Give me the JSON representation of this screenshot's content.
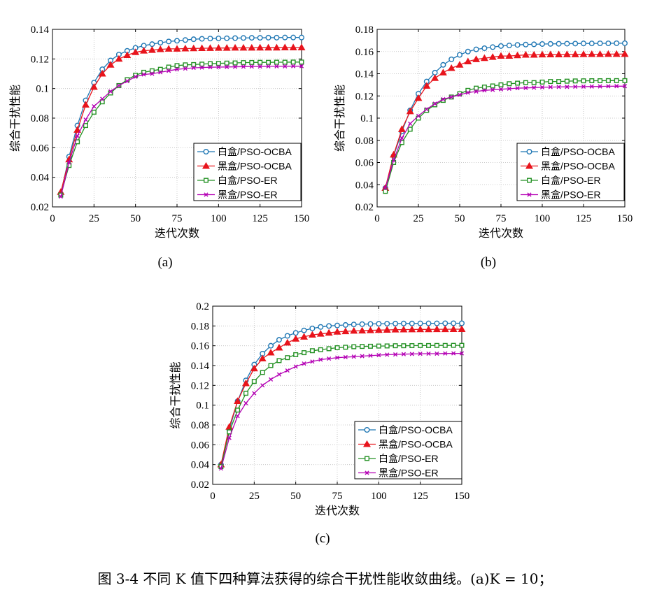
{
  "caption": "图 3-4 不同 K 值下四种算法获得的综合干扰性能收敛曲线。(a)K = 10；",
  "colors": {
    "blue": "#1f77b4",
    "red": "#e8141c",
    "green": "#249124",
    "purple": "#b400b4"
  },
  "chart_data": [
    {
      "type": "line",
      "sublabel": "(a)",
      "xlabel": "迭代次数",
      "ylabel": "综合干扰性能",
      "xlim": [
        0,
        150
      ],
      "ylim": [
        0.02,
        0.14
      ],
      "xticks": [
        0,
        25,
        50,
        75,
        100,
        125,
        150
      ],
      "yticks": [
        0.02,
        0.04,
        0.06,
        0.08,
        0.1,
        0.12,
        0.14
      ],
      "ytick_labels": [
        "0.02",
        "0.04",
        "0.06",
        "0.08",
        "0.1",
        "0.12",
        "0.14"
      ],
      "grid": true,
      "legend_position": "lower-right",
      "x": [
        5,
        10,
        15,
        20,
        25,
        30,
        35,
        40,
        45,
        50,
        55,
        60,
        65,
        70,
        75,
        80,
        85,
        90,
        95,
        100,
        105,
        110,
        115,
        120,
        125,
        130,
        135,
        140,
        145,
        150
      ],
      "series": [
        {
          "name": "白盒/PSO-OCBA",
          "color": "blue",
          "marker": "circle",
          "values": [
            0.029,
            0.054,
            0.075,
            0.092,
            0.104,
            0.113,
            0.119,
            0.123,
            0.1255,
            0.1275,
            0.129,
            0.13,
            0.131,
            0.1318,
            0.1323,
            0.1328,
            0.1333,
            0.1336,
            0.1338,
            0.1339,
            0.134,
            0.1341,
            0.1342,
            0.1343,
            0.1343,
            0.1344,
            0.1344,
            0.1345,
            0.1345,
            0.1345
          ]
        },
        {
          "name": "黑盒/PSO-OCBA",
          "color": "red",
          "marker": "triangle",
          "values": [
            0.03,
            0.052,
            0.072,
            0.089,
            0.101,
            0.11,
            0.116,
            0.12,
            0.1225,
            0.1245,
            0.1255,
            0.126,
            0.1265,
            0.1268,
            0.1268,
            0.127,
            0.1271,
            0.1272,
            0.1273,
            0.1274,
            0.1274,
            0.1275,
            0.1275,
            0.1275,
            0.1276,
            0.1276,
            0.1276,
            0.1277,
            0.1277,
            0.1277
          ]
        },
        {
          "name": "白盒/PSO-ER",
          "color": "green",
          "marker": "square",
          "values": [
            0.028,
            0.048,
            0.064,
            0.075,
            0.084,
            0.091,
            0.097,
            0.102,
            0.106,
            0.109,
            0.111,
            0.112,
            0.113,
            0.1145,
            0.1155,
            0.116,
            0.1162,
            0.1165,
            0.1168,
            0.117,
            0.1172,
            0.1173,
            0.1175,
            0.1176,
            0.1177,
            0.1177,
            0.1178,
            0.1178,
            0.1179,
            0.1179
          ]
        },
        {
          "name": "黑盒/PSO-ER",
          "color": "purple",
          "marker": "cross",
          "values": [
            0.027,
            0.05,
            0.068,
            0.079,
            0.088,
            0.093,
            0.098,
            0.102,
            0.105,
            0.108,
            0.1095,
            0.11,
            0.111,
            0.112,
            0.113,
            0.1135,
            0.114,
            0.1142,
            0.1144,
            0.1145,
            0.1146,
            0.1147,
            0.1148,
            0.1149,
            0.1149,
            0.115,
            0.115,
            0.115,
            0.1151,
            0.1151
          ]
        }
      ]
    },
    {
      "type": "line",
      "sublabel": "(b)",
      "xlabel": "迭代次数",
      "ylabel": "综合干扰性能",
      "xlim": [
        0,
        150
      ],
      "ylim": [
        0.02,
        0.18
      ],
      "xticks": [
        0,
        25,
        50,
        75,
        100,
        125,
        150
      ],
      "yticks": [
        0.02,
        0.04,
        0.06,
        0.08,
        0.1,
        0.12,
        0.14,
        0.16,
        0.18
      ],
      "ytick_labels": [
        "0.02",
        "0.04",
        "0.06",
        "0.08",
        "0.1",
        "0.12",
        "0.14",
        "0.16",
        "0.18"
      ],
      "grid": true,
      "legend_position": "lower-right",
      "x": [
        5,
        10,
        15,
        20,
        25,
        30,
        35,
        40,
        45,
        50,
        55,
        60,
        65,
        70,
        75,
        80,
        85,
        90,
        95,
        100,
        105,
        110,
        115,
        120,
        125,
        130,
        135,
        140,
        145,
        150
      ],
      "series": [
        {
          "name": "白盒/PSO-OCBA",
          "color": "blue",
          "marker": "circle",
          "values": [
            0.037,
            0.066,
            0.088,
            0.107,
            0.122,
            0.133,
            0.141,
            0.148,
            0.153,
            0.157,
            0.16,
            0.162,
            0.163,
            0.164,
            0.165,
            0.1655,
            0.166,
            0.1663,
            0.1665,
            0.1668,
            0.1669,
            0.167,
            0.1671,
            0.1672,
            0.1673,
            0.1673,
            0.1674,
            0.1674,
            0.1675,
            0.1675
          ]
        },
        {
          "name": "黑盒/PSO-OCBA",
          "color": "red",
          "marker": "triangle",
          "values": [
            0.037,
            0.067,
            0.09,
            0.106,
            0.118,
            0.129,
            0.136,
            0.141,
            0.145,
            0.148,
            0.151,
            0.153,
            0.154,
            0.155,
            0.156,
            0.156,
            0.1565,
            0.157,
            0.157,
            0.1572,
            0.1573,
            0.1573,
            0.1574,
            0.1574,
            0.1575,
            0.1576,
            0.1576,
            0.1577,
            0.1577,
            0.1577
          ]
        },
        {
          "name": "白盒/PSO-ER",
          "color": "green",
          "marker": "square",
          "values": [
            0.034,
            0.06,
            0.078,
            0.09,
            0.1,
            0.107,
            0.112,
            0.116,
            0.119,
            0.122,
            0.125,
            0.127,
            0.128,
            0.129,
            0.13,
            0.131,
            0.1315,
            0.132,
            0.132,
            0.1325,
            0.133,
            0.133,
            0.1333,
            0.1335,
            0.1336,
            0.1337,
            0.1337,
            0.1338,
            0.1338,
            0.1338
          ]
        },
        {
          "name": "黑盒/PSO-ER",
          "color": "purple",
          "marker": "cross",
          "values": [
            0.037,
            0.062,
            0.082,
            0.095,
            0.102,
            0.108,
            0.113,
            0.117,
            0.119,
            0.121,
            0.123,
            0.124,
            0.125,
            0.1255,
            0.126,
            0.1265,
            0.127,
            0.1272,
            0.1275,
            0.1278,
            0.128,
            0.1281,
            0.1282,
            0.1283,
            0.1284,
            0.1285,
            0.1286,
            0.1287,
            0.1288,
            0.1288
          ]
        }
      ]
    },
    {
      "type": "line",
      "sublabel": "(c)",
      "xlabel": "迭代次数",
      "ylabel": "综合干扰性能",
      "xlim": [
        0,
        150
      ],
      "ylim": [
        0.02,
        0.2
      ],
      "xticks": [
        0,
        25,
        50,
        75,
        100,
        125,
        150
      ],
      "yticks": [
        0.02,
        0.04,
        0.06,
        0.08,
        0.1,
        0.12,
        0.14,
        0.16,
        0.18,
        0.2
      ],
      "ytick_labels": [
        "0.02",
        "0.04",
        "0.06",
        "0.08",
        "0.1",
        "0.12",
        "0.14",
        "0.16",
        "0.18",
        "0.2"
      ],
      "grid": true,
      "legend_position": "lower-right",
      "x": [
        5,
        10,
        15,
        20,
        25,
        30,
        35,
        40,
        45,
        50,
        55,
        60,
        65,
        70,
        75,
        80,
        85,
        90,
        95,
        100,
        105,
        110,
        115,
        120,
        125,
        130,
        135,
        140,
        145,
        150
      ],
      "series": [
        {
          "name": "白盒/PSO-OCBA",
          "color": "blue",
          "marker": "circle",
          "values": [
            0.04,
            0.075,
            0.104,
            0.125,
            0.141,
            0.152,
            0.16,
            0.166,
            0.17,
            0.173,
            0.1755,
            0.1775,
            0.179,
            0.18,
            0.1805,
            0.181,
            0.1815,
            0.1818,
            0.182,
            0.1822,
            0.1823,
            0.1824,
            0.1825,
            0.1825,
            0.1826,
            0.1826,
            0.1826,
            0.1827,
            0.1827,
            0.1827
          ]
        },
        {
          "name": "黑盒/PSO-OCBA",
          "color": "red",
          "marker": "triangle",
          "values": [
            0.04,
            0.078,
            0.104,
            0.122,
            0.137,
            0.147,
            0.153,
            0.158,
            0.163,
            0.167,
            0.169,
            0.171,
            0.172,
            0.173,
            0.174,
            0.1745,
            0.175,
            0.1752,
            0.1755,
            0.1758,
            0.176,
            0.1762,
            0.1763,
            0.1764,
            0.1765,
            0.1765,
            0.1766,
            0.1766,
            0.1767,
            0.1767
          ]
        },
        {
          "name": "白盒/PSO-ER",
          "color": "green",
          "marker": "square",
          "values": [
            0.038,
            0.073,
            0.095,
            0.112,
            0.124,
            0.133,
            0.14,
            0.145,
            0.148,
            0.151,
            0.153,
            0.155,
            0.156,
            0.157,
            0.158,
            0.1585,
            0.159,
            0.1593,
            0.1595,
            0.1597,
            0.1598,
            0.16,
            0.16,
            0.1601,
            0.1602,
            0.1602,
            0.1603,
            0.1603,
            0.1604,
            0.1604
          ]
        },
        {
          "name": "黑盒/PSO-ER",
          "color": "purple",
          "marker": "cross",
          "values": [
            0.036,
            0.067,
            0.089,
            0.102,
            0.112,
            0.12,
            0.126,
            0.131,
            0.135,
            0.139,
            0.142,
            0.144,
            0.146,
            0.147,
            0.148,
            0.1485,
            0.149,
            0.1495,
            0.15,
            0.1505,
            0.151,
            0.1512,
            0.1515,
            0.1517,
            0.1519,
            0.152,
            0.152,
            0.1522,
            0.1523,
            0.1523
          ]
        }
      ]
    }
  ]
}
